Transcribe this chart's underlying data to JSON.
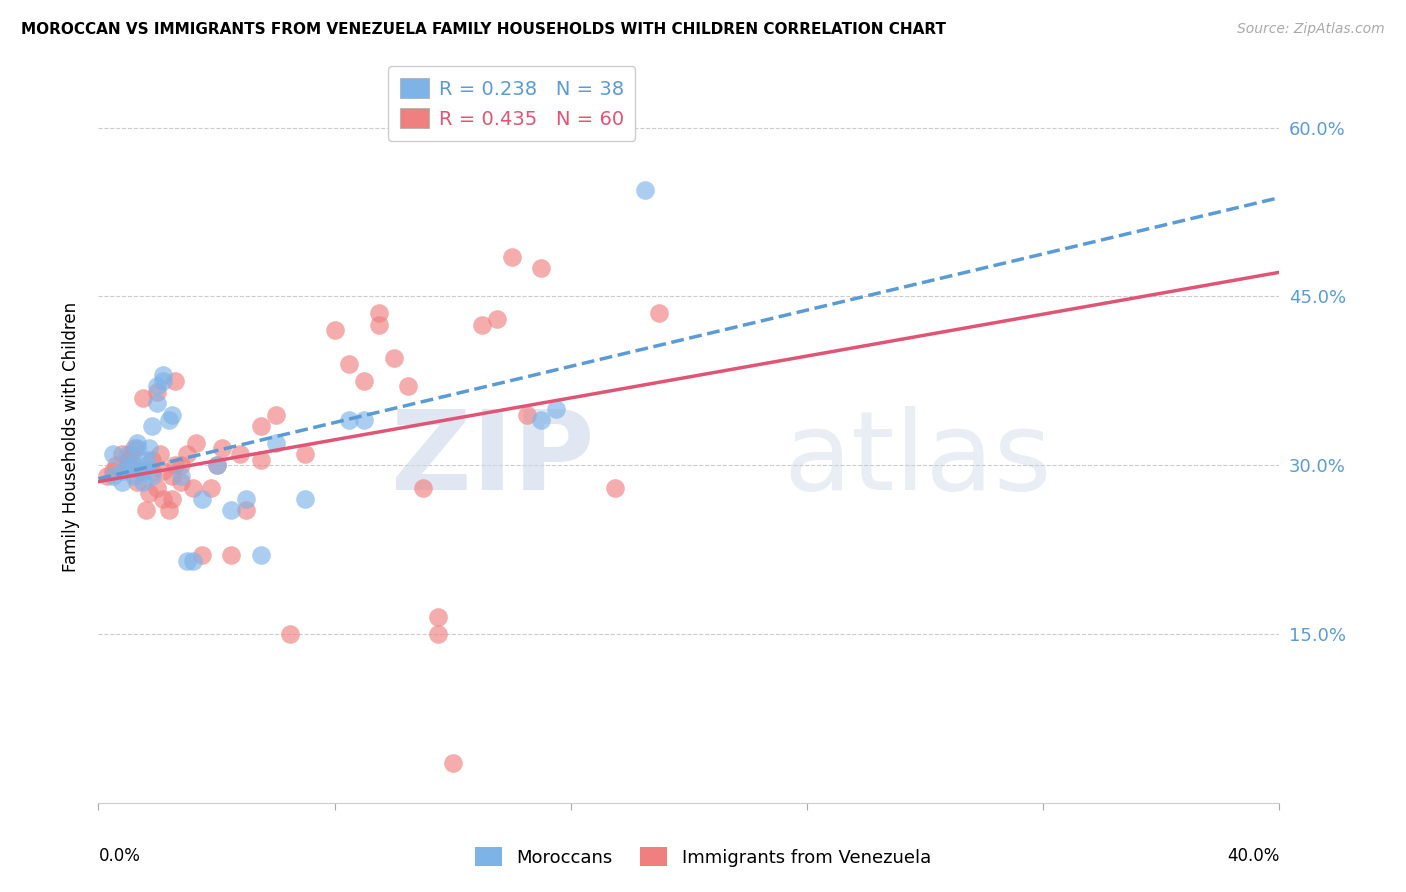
{
  "title": "MOROCCAN VS IMMIGRANTS FROM VENEZUELA FAMILY HOUSEHOLDS WITH CHILDREN CORRELATION CHART",
  "source": "Source: ZipAtlas.com",
  "ylabel": "Family Households with Children",
  "ytick_labels": [
    "60.0%",
    "45.0%",
    "30.0%",
    "15.0%"
  ],
  "ytick_values": [
    0.6,
    0.45,
    0.3,
    0.15
  ],
  "xlim": [
    0.0,
    0.4
  ],
  "ylim": [
    0.0,
    0.65
  ],
  "legend_blue_R": "R = 0.238",
  "legend_blue_N": "N = 38",
  "legend_pink_R": "R = 0.435",
  "legend_pink_N": "N = 60",
  "legend_label_blue": "Moroccans",
  "legend_label_pink": "Immigrants from Venezuela",
  "blue_color": "#7EB3E8",
  "pink_color": "#F08080",
  "blue_line_color": "#5B9BD5",
  "pink_line_color": "#E05575",
  "blue_x": [
    0.005,
    0.005,
    0.008,
    0.008,
    0.01,
    0.01,
    0.012,
    0.012,
    0.013,
    0.013,
    0.015,
    0.015,
    0.016,
    0.016,
    0.017,
    0.018,
    0.018,
    0.02,
    0.02,
    0.022,
    0.022,
    0.024,
    0.025,
    0.028,
    0.03,
    0.032,
    0.035,
    0.04,
    0.045,
    0.05,
    0.055,
    0.06,
    0.07,
    0.085,
    0.09,
    0.15,
    0.155,
    0.185
  ],
  "blue_y": [
    0.29,
    0.31,
    0.285,
    0.295,
    0.3,
    0.31,
    0.29,
    0.3,
    0.315,
    0.32,
    0.285,
    0.295,
    0.3,
    0.305,
    0.315,
    0.29,
    0.335,
    0.355,
    0.37,
    0.375,
    0.38,
    0.34,
    0.345,
    0.29,
    0.215,
    0.215,
    0.27,
    0.3,
    0.26,
    0.27,
    0.22,
    0.32,
    0.27,
    0.34,
    0.34,
    0.34,
    0.35,
    0.545
  ],
  "pink_x": [
    0.003,
    0.005,
    0.006,
    0.008,
    0.01,
    0.01,
    0.011,
    0.012,
    0.013,
    0.014,
    0.015,
    0.016,
    0.017,
    0.018,
    0.018,
    0.02,
    0.02,
    0.021,
    0.022,
    0.022,
    0.024,
    0.025,
    0.025,
    0.026,
    0.026,
    0.028,
    0.028,
    0.03,
    0.032,
    0.033,
    0.035,
    0.038,
    0.04,
    0.042,
    0.045,
    0.048,
    0.05,
    0.055,
    0.055,
    0.06,
    0.065,
    0.07,
    0.08,
    0.085,
    0.09,
    0.095,
    0.095,
    0.1,
    0.105,
    0.11,
    0.115,
    0.115,
    0.12,
    0.13,
    0.135,
    0.14,
    0.145,
    0.15,
    0.175,
    0.19
  ],
  "pink_y": [
    0.29,
    0.295,
    0.3,
    0.31,
    0.3,
    0.305,
    0.31,
    0.315,
    0.285,
    0.295,
    0.36,
    0.26,
    0.275,
    0.295,
    0.305,
    0.365,
    0.28,
    0.31,
    0.27,
    0.295,
    0.26,
    0.27,
    0.29,
    0.3,
    0.375,
    0.285,
    0.3,
    0.31,
    0.28,
    0.32,
    0.22,
    0.28,
    0.3,
    0.315,
    0.22,
    0.31,
    0.26,
    0.305,
    0.335,
    0.345,
    0.15,
    0.31,
    0.42,
    0.39,
    0.375,
    0.425,
    0.435,
    0.395,
    0.37,
    0.28,
    0.15,
    0.165,
    0.035,
    0.425,
    0.43,
    0.485,
    0.345,
    0.475,
    0.28,
    0.435
  ]
}
